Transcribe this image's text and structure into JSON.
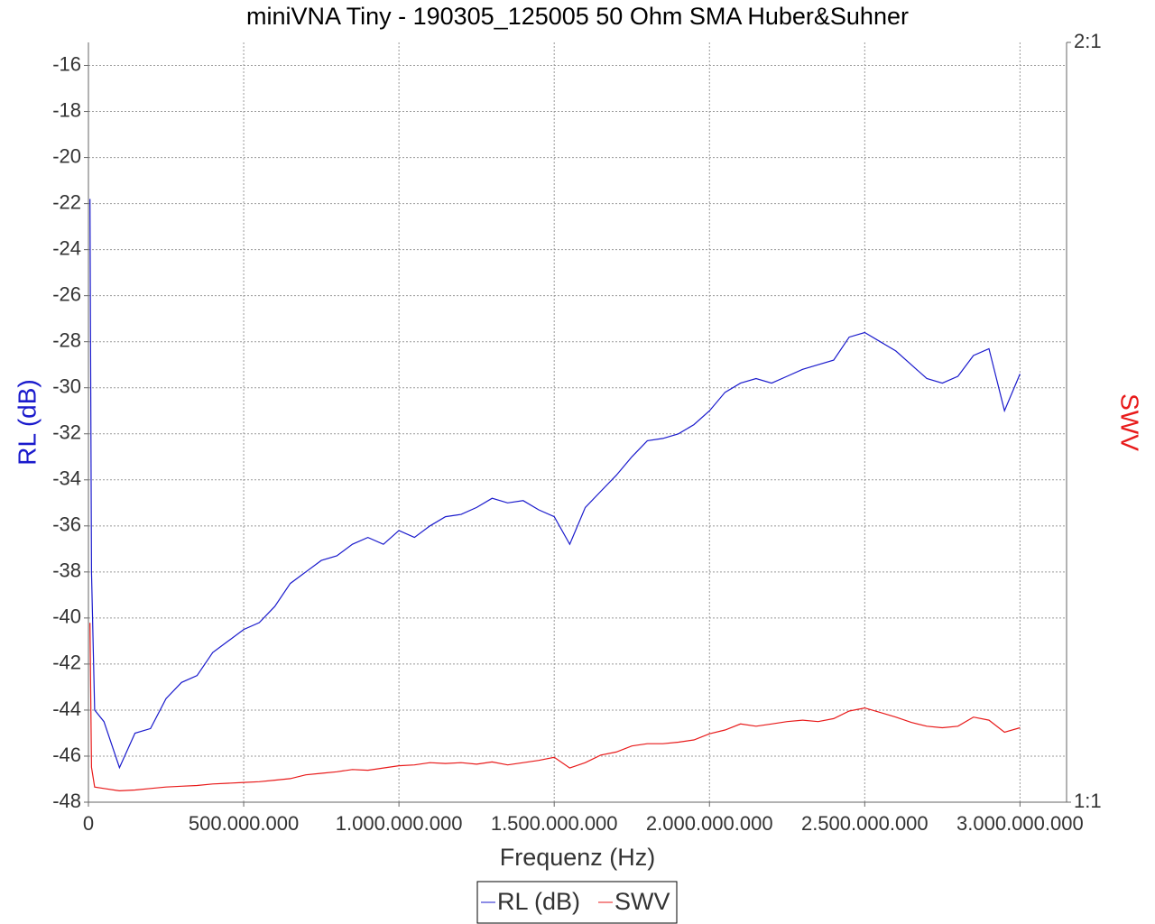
{
  "chart_data": {
    "type": "line",
    "title": "miniVNA Tiny - 190305_125005 50 Ohm SMA Huber&Suhner",
    "x_label": "Frequenz (Hz)",
    "y_label": "RL (dB)",
    "y2_label": "SWV",
    "x": [
      5000000,
      10000000,
      20000000,
      50000000,
      100000000,
      150000000,
      200000000,
      250000000,
      300000000,
      350000000,
      400000000,
      450000000,
      500000000,
      550000000,
      600000000,
      650000000,
      700000000,
      750000000,
      800000000,
      850000000,
      900000000,
      950000000,
      1000000000,
      1050000000,
      1100000000,
      1150000000,
      1200000000,
      1250000000,
      1300000000,
      1350000000,
      1400000000,
      1450000000,
      1500000000,
      1550000000,
      1600000000,
      1650000000,
      1700000000,
      1750000000,
      1800000000,
      1850000000,
      1900000000,
      1950000000,
      2000000000,
      2050000000,
      2100000000,
      2150000000,
      2200000000,
      2250000000,
      2300000000,
      2350000000,
      2400000000,
      2450000000,
      2500000000,
      2550000000,
      2600000000,
      2650000000,
      2700000000,
      2750000000,
      2800000000,
      2850000000,
      2900000000,
      2950000000,
      3000000000
    ],
    "series": [
      {
        "name": "RL (dB)",
        "color": "#1a1acc",
        "axis": "y",
        "values": [
          -21.8,
          -38,
          -44,
          -44.5,
          -46.5,
          -45,
          -44.8,
          -43.5,
          -42.8,
          -42.5,
          -41.5,
          -41,
          -40.5,
          -40.2,
          -39.5,
          -38.5,
          -38,
          -37.5,
          -37.3,
          -36.8,
          -36.5,
          -36.8,
          -36.2,
          -36.5,
          -36,
          -35.6,
          -35.5,
          -35.2,
          -34.8,
          -35,
          -34.9,
          -35.3,
          -35.6,
          -36.8,
          -35.2,
          -34.5,
          -33.8,
          -33,
          -32.3,
          -32.2,
          -32,
          -31.6,
          -31,
          -30.2,
          -29.8,
          -29.6,
          -29.8,
          -29.5,
          -29.2,
          -29,
          -28.8,
          -27.8,
          -27.6,
          -28,
          -28.4,
          -29,
          -29.6,
          -29.8,
          -29.5,
          -28.6,
          -28.3,
          -31,
          -29.4
        ]
      },
      {
        "name": "SWV",
        "color": "#e81a1a",
        "axis": "y2",
        "values": [
          1.236,
          1.046,
          1.02,
          1.018,
          1.015,
          1.016,
          1.018,
          1.02,
          1.021,
          1.022,
          1.024,
          1.025,
          1.026,
          1.027,
          1.029,
          1.031,
          1.036,
          1.038,
          1.04,
          1.043,
          1.042,
          1.045,
          1.048,
          1.049,
          1.052,
          1.051,
          1.052,
          1.05,
          1.053,
          1.049,
          1.052,
          1.055,
          1.059,
          1.045,
          1.052,
          1.062,
          1.066,
          1.074,
          1.077,
          1.077,
          1.079,
          1.082,
          1.09,
          1.095,
          1.103,
          1.1,
          1.103,
          1.106,
          1.108,
          1.106,
          1.11,
          1.12,
          1.124,
          1.118,
          1.112,
          1.105,
          1.1,
          1.098,
          1.1,
          1.112,
          1.108,
          1.092,
          1.098
        ]
      }
    ],
    "xlim": [
      0,
      3150000000
    ],
    "xticks": [
      0,
      {
        "value": 500000000,
        "label": "500.000.000"
      },
      {
        "value": 1000000000,
        "label": "1.000.000.000"
      },
      {
        "value": 1500000000,
        "label": "1.500.000.000"
      },
      {
        "value": 2000000000,
        "label": "2.000.000.000"
      },
      {
        "value": 2500000000,
        "label": "2.500.000.000"
      },
      {
        "value": 3000000000,
        "label": "3.000.000.000"
      }
    ],
    "ylim": [
      -48,
      -15
    ],
    "yticks": [
      -48,
      -46,
      -44,
      -42,
      -40,
      -38,
      -36,
      -34,
      -32,
      -30,
      -28,
      -26,
      -24,
      -22,
      -20,
      -18,
      -16
    ],
    "y2lim": [
      1,
      2
    ],
    "y2ticks": [
      {
        "value": 1,
        "label": "1:1"
      },
      {
        "value": 2,
        "label": "2:1"
      }
    ],
    "grid": true
  }
}
